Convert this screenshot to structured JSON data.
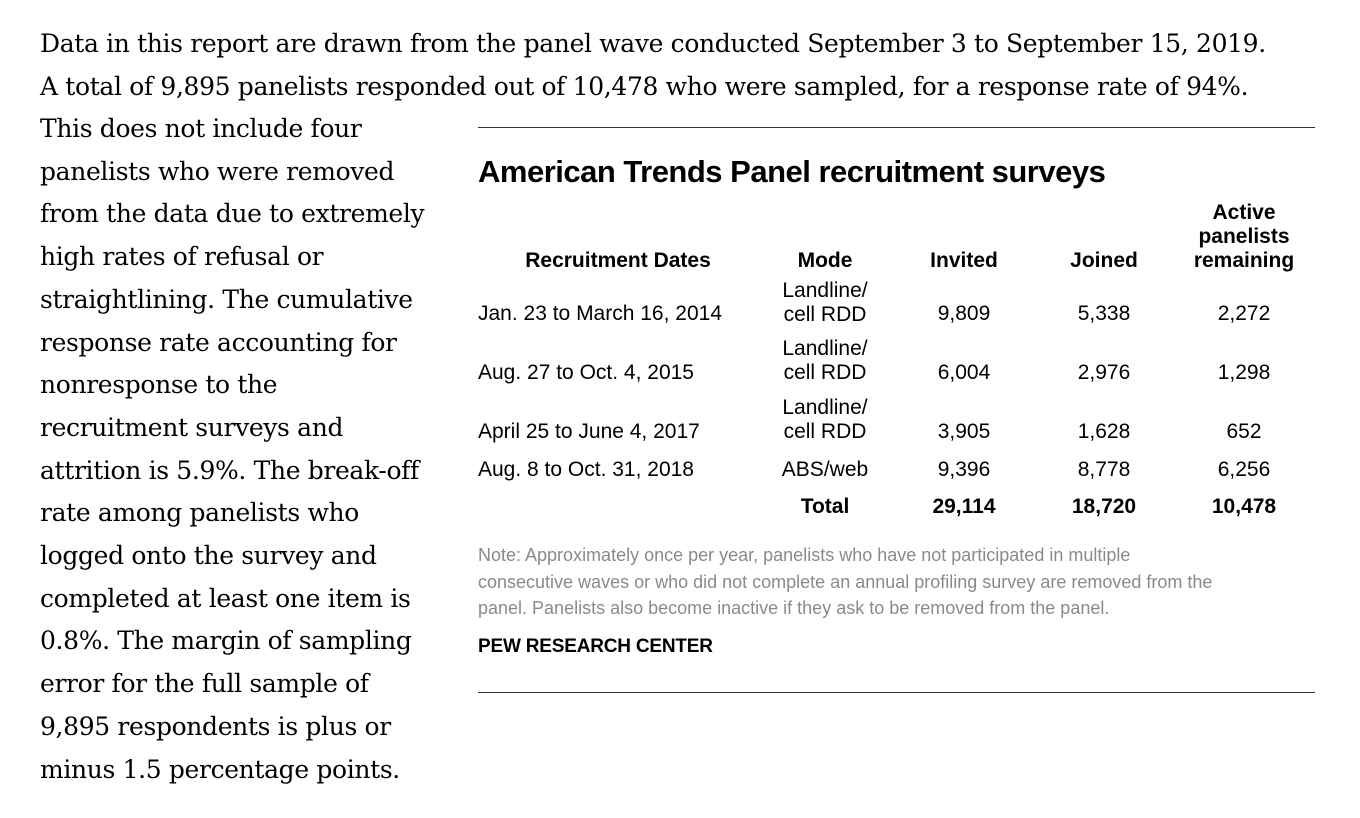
{
  "intro": {
    "line1": "Data in this report are drawn from the panel wave conducted September 3 to September 15, 2019.",
    "line2": "A total of 9,895 panelists responded out of 10,478 who were sampled, for a response rate of 94%."
  },
  "body_lines": [
    "This does not include four",
    "panelists who were removed",
    "from the data due to extremely",
    "high rates of refusal or",
    "straightlining. The cumulative",
    "response rate accounting for",
    "nonresponse to the",
    "recruitment surveys and",
    "attrition is 5.9%. The break-off",
    "rate among panelists who",
    "logged onto the survey and",
    "completed at least one item is",
    "0.8%.  The margin of sampling",
    "error for the full sample of",
    "9,895 respondents is plus or",
    "minus 1.5 percentage points."
  ],
  "table": {
    "title": "American Trends Panel recruitment surveys",
    "headers": {
      "dates": "Recruitment Dates",
      "mode": "Mode",
      "invited": "Invited",
      "joined": "Joined",
      "active_1": "Active",
      "active_2": "panelists",
      "active_3": "remaining"
    },
    "rows": [
      {
        "dates": "Jan. 23 to March 16, 2014",
        "mode_1": "Landline/",
        "mode_2": "cell RDD",
        "invited": "9,809",
        "joined": "5,338",
        "active": "2,272"
      },
      {
        "dates": "Aug. 27 to Oct. 4, 2015",
        "mode_1": "Landline/",
        "mode_2": "cell RDD",
        "invited": "6,004",
        "joined": "2,976",
        "active": "1,298"
      },
      {
        "dates": "April 25 to June 4, 2017",
        "mode_1": "Landline/",
        "mode_2": "cell RDD",
        "invited": "3,905",
        "joined": "1,628",
        "active": "652"
      },
      {
        "dates": "Aug. 8 to Oct. 31, 2018",
        "mode_1": "",
        "mode_2": "ABS/web",
        "invited": "9,396",
        "joined": "8,778",
        "active": "6,256"
      }
    ],
    "total": {
      "label": "Total",
      "invited": "29,114",
      "joined": "18,720",
      "active": "10,478"
    },
    "note_lines": [
      "Note: Approximately once per year, panelists who have not participated in multiple",
      "consecutive waves or who did not complete an annual profiling survey are removed from the",
      "panel. Panelists also become inactive if they ask to be removed from the panel."
    ],
    "source": "PEW RESEARCH CENTER"
  }
}
